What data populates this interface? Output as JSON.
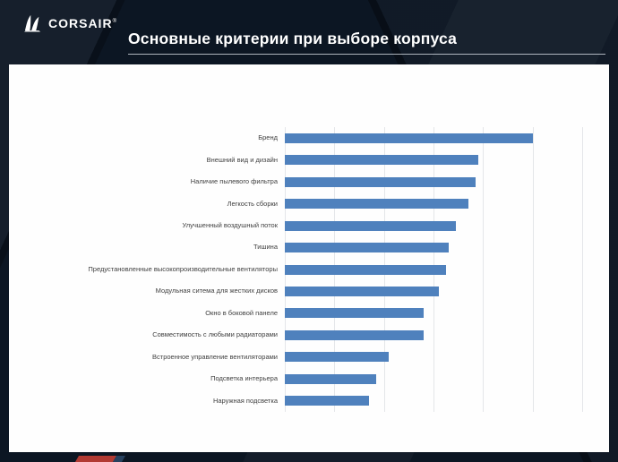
{
  "slide": {
    "title": "Основные критерии при выборе корпуса",
    "logo_text": "CORSAIR",
    "logo_reg": "®"
  },
  "chart_data": {
    "type": "bar",
    "orientation": "horizontal",
    "title": "",
    "xlabel": "",
    "ylabel": "",
    "xlim": [
      0,
      120
    ],
    "grid": true,
    "gridline_step": 20,
    "bar_color": "#4f81bd",
    "categories": [
      "Бренд",
      "Внешний вид и дизайн",
      "Наличие пылевого фильтра",
      "Легкость сборки",
      "Улучшенный воздушный поток",
      "Тишина",
      "Предустановленные высокопроизводительные вентиляторы",
      "Модульная ситема для жестких дисков",
      "Окно в боковой панеле",
      "Совместимость с любыми радиаторами",
      "Встроенное управление вентиляторами",
      "Подсветка интерьера",
      "Наружная подсветка"
    ],
    "values": [
      100,
      78,
      77,
      74,
      69,
      66,
      65,
      62,
      56,
      56,
      42,
      37,
      34
    ]
  }
}
